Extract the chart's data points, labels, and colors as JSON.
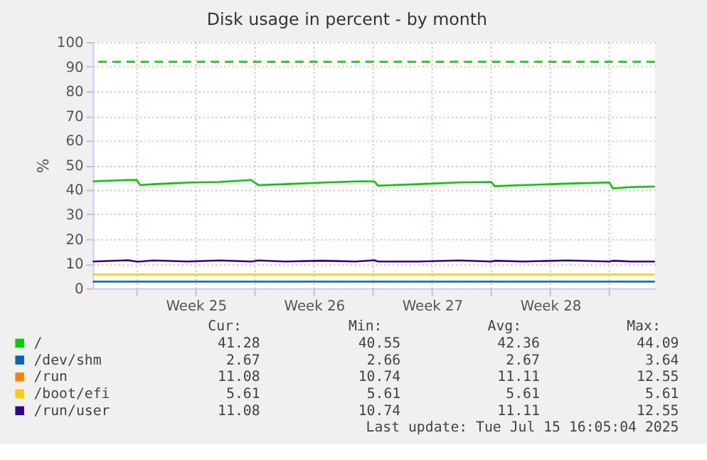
{
  "chart_data": {
    "type": "line",
    "title": "Disk usage in percent - by month",
    "ylabel": "%",
    "xlim": [
      "2025-06-13T09:36",
      "2025-07-16T17:00"
    ],
    "ylim": [
      0,
      100
    ],
    "xticks": [
      {
        "value": "2025-06-16",
        "label": null
      },
      {
        "value": "2025-06-19T12:00",
        "label": "Week 25"
      },
      {
        "value": "2025-06-23",
        "label": null
      },
      {
        "value": "2025-06-26T12:00",
        "label": "Week 26"
      },
      {
        "value": "2025-06-30",
        "label": null
      },
      {
        "value": "2025-07-03T12:00",
        "label": "Week 27"
      },
      {
        "value": "2025-07-07",
        "label": null
      },
      {
        "value": "2025-07-10T12:00",
        "label": "Week 28"
      },
      {
        "value": "2025-07-14",
        "label": null
      }
    ],
    "yticks": [
      0,
      10,
      20,
      30,
      40,
      50,
      60,
      70,
      80,
      90,
      100
    ],
    "grid": true,
    "legend": "bottom",
    "marker": "none",
    "line_style": "solid",
    "x": [
      "2025-06-13T09:36",
      "2025-06-15T12:00",
      "2025-06-16T00:00",
      "2025-06-16T05:00",
      "2025-06-17T00:00",
      "2025-06-19T00:00",
      "2025-06-20T22:00",
      "2025-06-22T19:00",
      "2025-06-23T05:00",
      "2025-06-24T19:00",
      "2025-06-27T00:00",
      "2025-06-29T00:00",
      "2025-06-30T02:00",
      "2025-06-30T07:00",
      "2025-07-02T17:00",
      "2025-07-05T02:00",
      "2025-07-07T00:00",
      "2025-07-07T05:00",
      "2025-07-08T22:00",
      "2025-07-11T12:00",
      "2025-07-14T00:00",
      "2025-07-14T05:00",
      "2025-07-15T07:00",
      "2025-07-16T17:00"
    ],
    "series": [
      {
        "name": "/",
        "color": "#00cc00",
        "values": [
          43.4,
          44.0,
          44.0,
          41.9,
          42.3,
          42.9,
          43.2,
          44.0,
          41.9,
          42.3,
          42.9,
          43.4,
          43.4,
          41.7,
          42.3,
          43.0,
          43.2,
          41.5,
          41.9,
          42.5,
          43.0,
          40.6,
          41.1,
          41.3
        ]
      },
      {
        "name": "/dev/shm",
        "color": "#0066b3",
        "values": [
          2.7,
          2.7,
          2.7,
          2.7,
          2.7,
          2.7,
          2.7,
          2.7,
          2.7,
          2.7,
          2.7,
          2.7,
          2.7,
          2.7,
          2.7,
          2.7,
          2.7,
          2.7,
          2.7,
          2.7,
          2.7,
          2.7,
          2.7,
          2.7
        ]
      },
      {
        "name": "/run",
        "color": "#ff8000",
        "values": [
          null,
          null,
          null,
          null,
          null,
          null,
          null,
          null,
          null,
          null,
          null,
          null,
          null,
          null,
          null,
          null,
          null,
          null,
          null,
          null,
          null,
          null,
          null,
          null
        ]
      },
      {
        "name": "/boot/efi",
        "color": "#ffcc00",
        "values": [
          5.6,
          5.6,
          5.6,
          5.6,
          5.6,
          5.6,
          5.6,
          5.6,
          5.6,
          5.6,
          5.6,
          5.6,
          5.6,
          5.6,
          5.6,
          5.6,
          5.6,
          5.6,
          5.6,
          5.6,
          5.6,
          5.6,
          5.6,
          5.6
        ]
      },
      {
        "name": "/run/user",
        "color": "#330099",
        "values": [
          10.9,
          11.4,
          10.9,
          10.9,
          11.3,
          10.9,
          11.3,
          10.9,
          11.3,
          10.9,
          11.2,
          10.9,
          11.4,
          10.9,
          10.9,
          11.3,
          10.9,
          11.2,
          10.9,
          11.3,
          10.9,
          11.2,
          10.9,
          10.9
        ]
      }
    ],
    "ref_lines": [
      {
        "axis": "y",
        "value": 92,
        "label": null,
        "color": "#00cc00",
        "line_style": "dashed"
      }
    ],
    "annotations": [
      "Cur:",
      "Min:",
      "Avg:",
      "Max:",
      "41.28",
      "40.55",
      "42.36",
      "44.09",
      "2.67",
      "2.66",
      "2.67",
      "3.64",
      "11.08",
      "10.74",
      "11.11",
      "12.55",
      "5.61",
      "5.61",
      "5.61",
      "5.61",
      "11.08",
      "10.74",
      "11.11",
      "12.55",
      "Last update: Tue Jul 15 16:05:04 2025"
    ]
  }
}
